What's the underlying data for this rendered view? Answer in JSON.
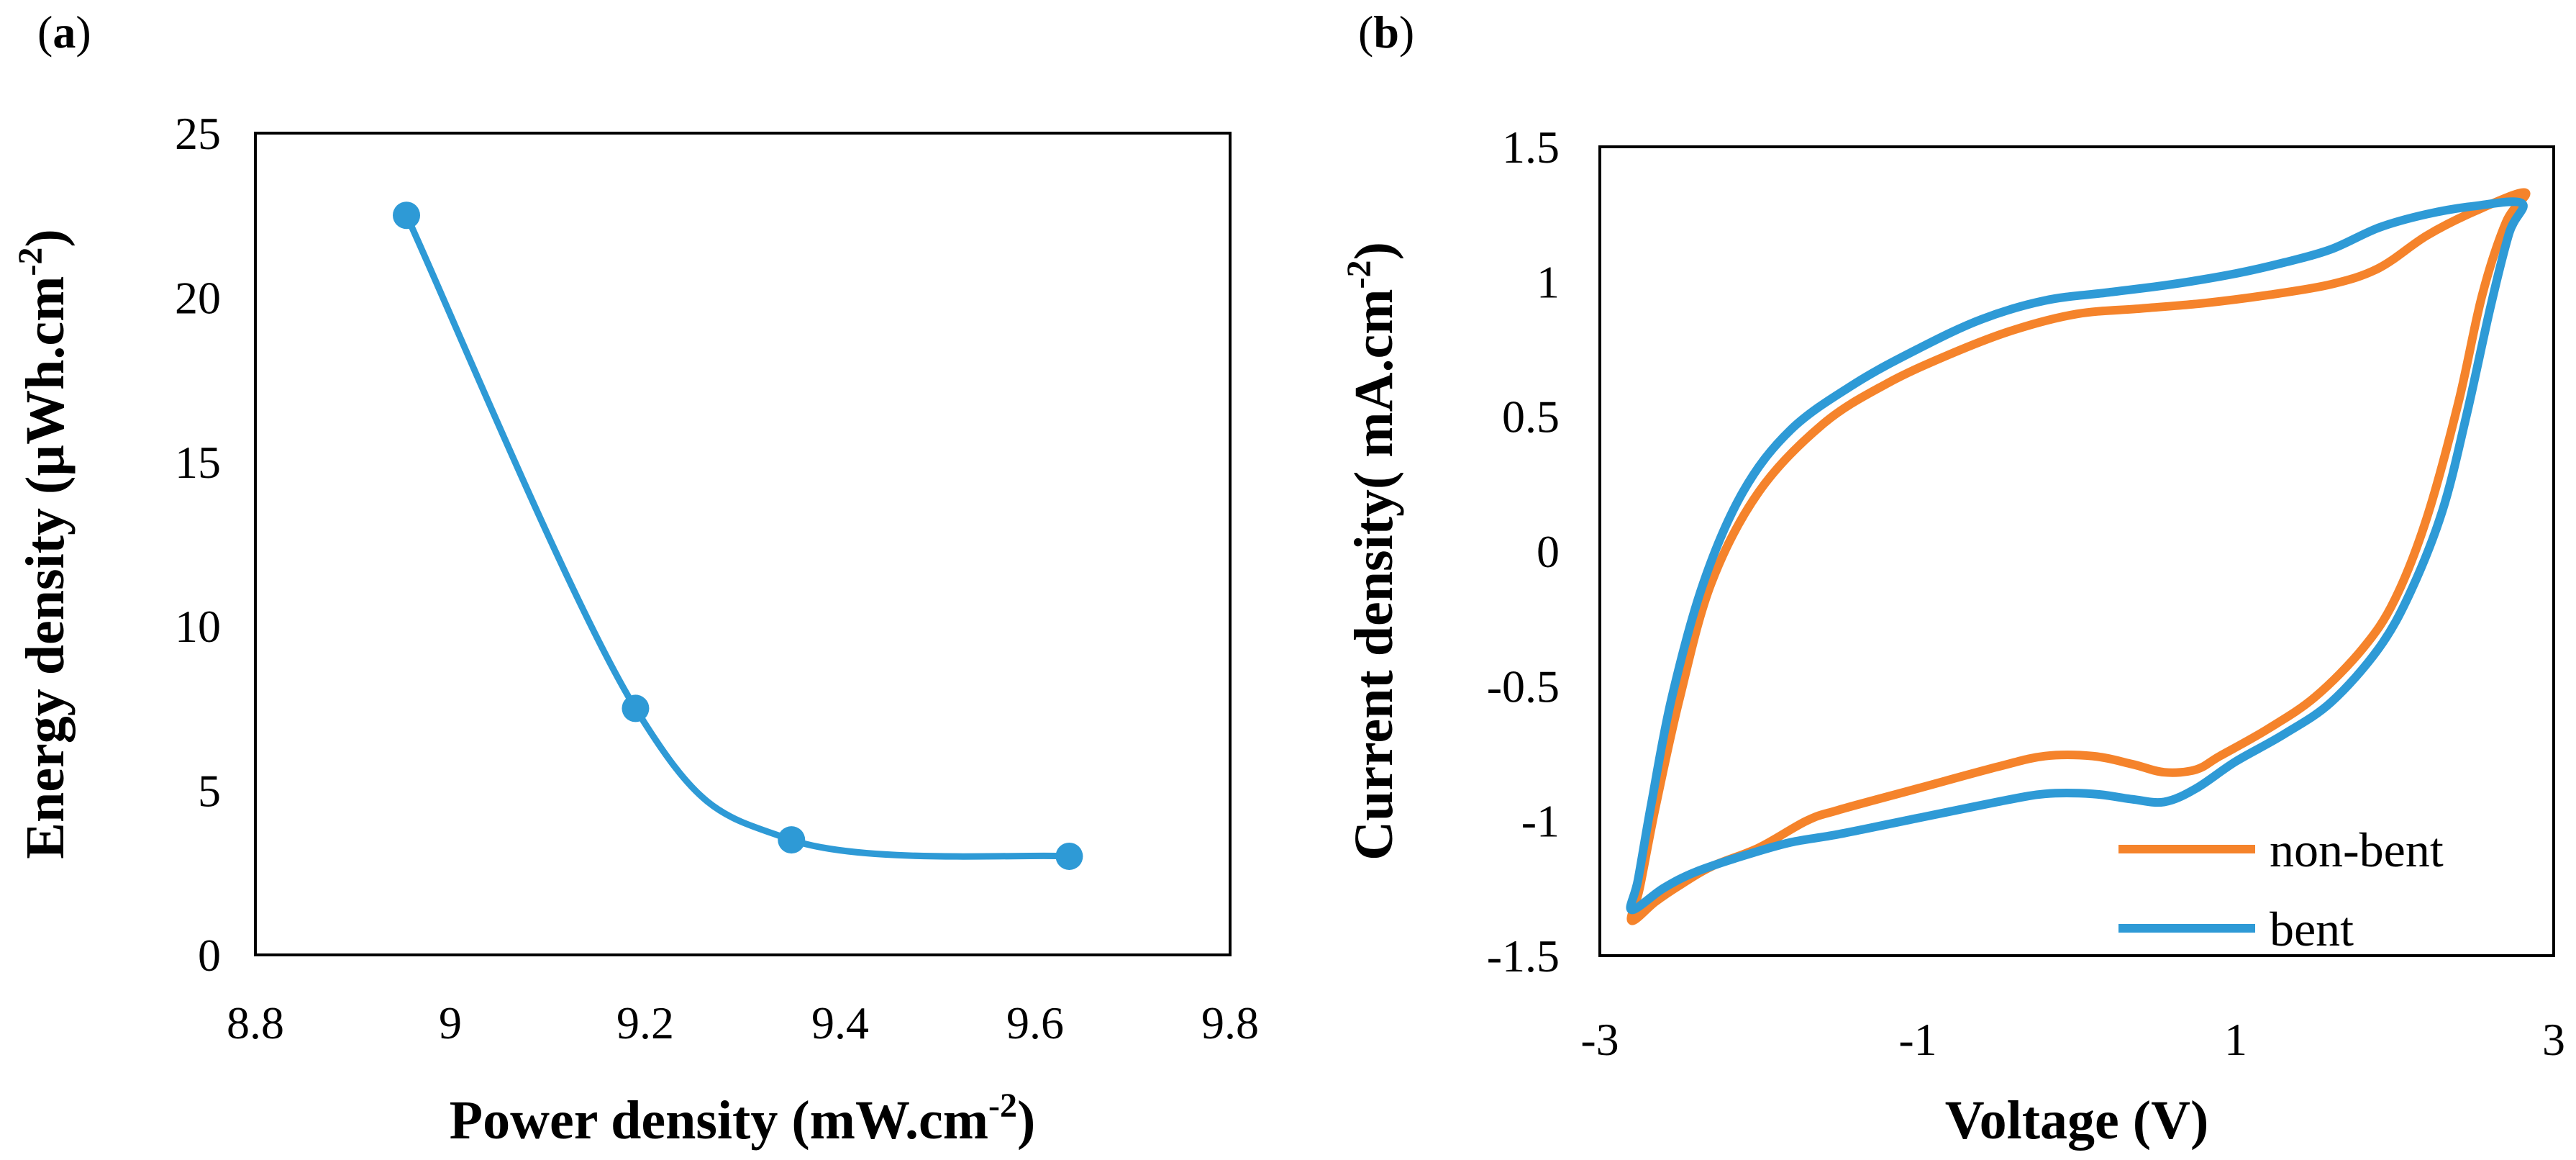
{
  "figure": {
    "panel_a_label_open": "(",
    "panel_a_label": "a",
    "panel_a_label_close": ")",
    "panel_b_label_open": "(",
    "panel_b_label": "b",
    "panel_b_label_close": ")"
  },
  "chart_data": [
    {
      "type": "scatter",
      "style": "smoothed line with markers",
      "x": [
        8.955,
        9.19,
        9.35,
        9.635
      ],
      "y": [
        22.5,
        7.5,
        3.5,
        3.0
      ],
      "xlabel_main": "Power density (mW.cm",
      "xlabel_sup": "-2",
      "xlabel_end": ")",
      "ylabel_main": "Energy density (µWh.cm",
      "ylabel_sup": "-2",
      "ylabel_end": ")",
      "xlim": [
        8.8,
        9.8
      ],
      "ylim": [
        0,
        25
      ],
      "xticks": [
        8.8,
        9,
        9.2,
        9.4,
        9.6,
        9.8
      ],
      "xtick_labels": [
        "8.8",
        "9",
        "9.2",
        "9.4",
        "9.6",
        "9.8"
      ],
      "yticks": [
        0,
        5,
        10,
        15,
        20,
        25
      ],
      "ytick_labels": [
        "0",
        "5",
        "10",
        "15",
        "20",
        "25"
      ],
      "color": "#2e9ad6",
      "grid": false
    },
    {
      "type": "line",
      "xlabel": "Voltage (V)",
      "ylabel_main": "Current density( mA.cm",
      "ylabel_sup": "-2",
      "ylabel_end": ")",
      "xlim": [
        -3,
        3
      ],
      "ylim": [
        -1.5,
        1.5
      ],
      "xticks": [
        -3,
        -1,
        1,
        3
      ],
      "xtick_labels": [
        "-3",
        "-1",
        "1",
        "3"
      ],
      "yticks": [
        1.5,
        1,
        0.5,
        0,
        -0.5,
        -1,
        -1.5
      ],
      "ytick_labels": [
        "1.5",
        "1",
        "0.5",
        "0",
        "-0.5",
        "-1",
        "-1.5"
      ],
      "legend_position": "bottom-right",
      "grid": false,
      "series": [
        {
          "name": "non-bent",
          "color": "#f5832b",
          "points": [
            [
              -2.8,
              -1.37
            ],
            [
              -2.65,
              -1.3
            ],
            [
              -2.5,
              -1.24
            ],
            [
              -2.3,
              -1.17
            ],
            [
              -2.0,
              -1.1
            ],
            [
              -1.7,
              -1.0
            ],
            [
              -1.5,
              -0.96
            ],
            [
              -1.0,
              -0.88
            ],
            [
              -0.5,
              -0.8
            ],
            [
              -0.2,
              -0.76
            ],
            [
              0.1,
              -0.76
            ],
            [
              0.35,
              -0.79
            ],
            [
              0.55,
              -0.82
            ],
            [
              0.75,
              -0.81
            ],
            [
              0.9,
              -0.76
            ],
            [
              1.2,
              -0.66
            ],
            [
              1.5,
              -0.54
            ],
            [
              1.8,
              -0.36
            ],
            [
              2.0,
              -0.18
            ],
            [
              2.2,
              0.12
            ],
            [
              2.4,
              0.55
            ],
            [
              2.55,
              0.95
            ],
            [
              2.7,
              1.22
            ],
            [
              2.82,
              1.33
            ],
            [
              2.5,
              1.26
            ],
            [
              2.2,
              1.17
            ],
            [
              1.9,
              1.05
            ],
            [
              1.6,
              0.99
            ],
            [
              1.2,
              0.95
            ],
            [
              0.8,
              0.92
            ],
            [
              0.4,
              0.9
            ],
            [
              0.0,
              0.88
            ],
            [
              -0.4,
              0.82
            ],
            [
              -0.8,
              0.73
            ],
            [
              -1.2,
              0.62
            ],
            [
              -1.6,
              0.47
            ],
            [
              -2.0,
              0.22
            ],
            [
              -2.3,
              -0.12
            ],
            [
              -2.5,
              -0.55
            ],
            [
              -2.65,
              -0.95
            ],
            [
              -2.75,
              -1.25
            ],
            [
              -2.8,
              -1.37
            ]
          ]
        },
        {
          "name": "bent",
          "color": "#2e9ad6",
          "points": [
            [
              -2.8,
              -1.33
            ],
            [
              -2.6,
              -1.25
            ],
            [
              -2.4,
              -1.19
            ],
            [
              -2.1,
              -1.13
            ],
            [
              -1.8,
              -1.08
            ],
            [
              -1.5,
              -1.05
            ],
            [
              -1.0,
              -0.99
            ],
            [
              -0.5,
              -0.93
            ],
            [
              -0.2,
              -0.9
            ],
            [
              0.1,
              -0.9
            ],
            [
              0.35,
              -0.92
            ],
            [
              0.55,
              -0.93
            ],
            [
              0.75,
              -0.88
            ],
            [
              1.0,
              -0.78
            ],
            [
              1.3,
              -0.68
            ],
            [
              1.6,
              -0.56
            ],
            [
              1.9,
              -0.36
            ],
            [
              2.1,
              -0.15
            ],
            [
              2.3,
              0.15
            ],
            [
              2.45,
              0.5
            ],
            [
              2.6,
              0.9
            ],
            [
              2.72,
              1.18
            ],
            [
              2.8,
              1.29
            ],
            [
              2.5,
              1.28
            ],
            [
              2.2,
              1.25
            ],
            [
              1.9,
              1.2
            ],
            [
              1.6,
              1.12
            ],
            [
              1.3,
              1.07
            ],
            [
              1.0,
              1.03
            ],
            [
              0.6,
              0.99
            ],
            [
              0.2,
              0.96
            ],
            [
              -0.2,
              0.93
            ],
            [
              -0.6,
              0.86
            ],
            [
              -1.0,
              0.75
            ],
            [
              -1.4,
              0.62
            ],
            [
              -1.8,
              0.45
            ],
            [
              -2.1,
              0.22
            ],
            [
              -2.35,
              -0.12
            ],
            [
              -2.55,
              -0.55
            ],
            [
              -2.68,
              -0.95
            ],
            [
              -2.76,
              -1.22
            ],
            [
              -2.8,
              -1.33
            ]
          ]
        }
      ]
    }
  ]
}
